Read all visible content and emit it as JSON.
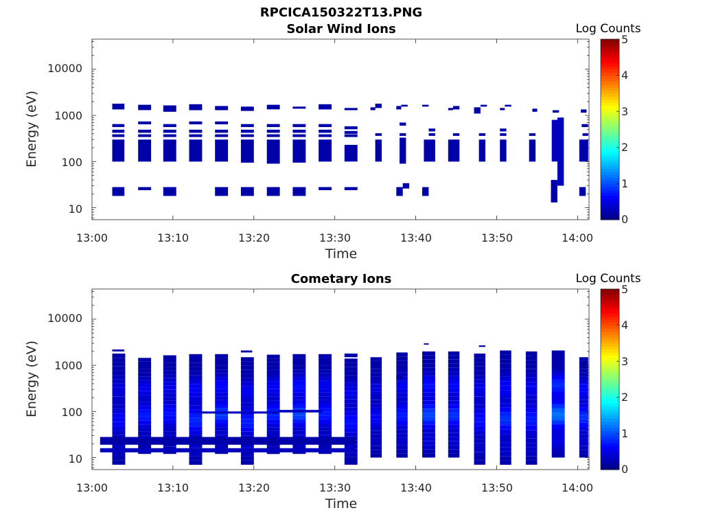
{
  "file_title": "RPCICA150322T13.PNG",
  "chart_data": [
    {
      "type": "heatmap",
      "title": "Solar Wind Ions",
      "xlabel": "Time",
      "ylabel": "Energy (eV)",
      "x_unit": "minutes after 13:00",
      "xlim": [
        0,
        61.5
      ],
      "ylim": [
        5.5,
        45000
      ],
      "y_scale": "log",
      "x_ticks": [
        "13:00",
        "13:10",
        "13:20",
        "13:30",
        "13:40",
        "13:50",
        "14:00"
      ],
      "y_ticks": [
        "10",
        "100",
        "1000",
        "10000"
      ],
      "colorbar": {
        "label": "Log Counts",
        "min": 0,
        "max": 5,
        "ticks": [
          "0",
          "1",
          "2",
          "3",
          "4",
          "5"
        ]
      },
      "cells": [
        [
          2.5,
          4.0,
          1350,
          1800,
          0.2
        ],
        [
          5.7,
          7.3,
          1300,
          1700,
          0.2
        ],
        [
          8.8,
          10.4,
          1200,
          1650,
          0.2
        ],
        [
          12.0,
          13.6,
          1300,
          1750,
          0.2
        ],
        [
          15.2,
          16.8,
          1300,
          1600,
          0.2
        ],
        [
          18.4,
          20.0,
          1250,
          1550,
          0.2
        ],
        [
          21.6,
          23.2,
          1350,
          1700,
          0.2
        ],
        [
          24.8,
          26.4,
          1400,
          1550,
          0.2
        ],
        [
          28.0,
          29.6,
          1350,
          1750,
          0.2
        ],
        [
          31.2,
          32.8,
          1300,
          1450,
          0.2
        ],
        [
          34.4,
          35.0,
          1300,
          1500,
          0.2
        ],
        [
          35.0,
          35.8,
          1450,
          1800,
          0.2
        ],
        [
          37.6,
          38.2,
          1350,
          1600,
          0.2
        ],
        [
          38.2,
          39.0,
          1550,
          1700,
          0.2
        ],
        [
          40.8,
          41.6,
          1550,
          1700,
          0.2
        ],
        [
          44.0,
          44.6,
          1300,
          1450,
          0.2
        ],
        [
          44.6,
          45.4,
          1350,
          1600,
          0.2
        ],
        [
          47.2,
          48.0,
          1100,
          1500,
          0.2
        ],
        [
          48.0,
          48.8,
          1550,
          1700,
          0.2
        ],
        [
          50.4,
          51.0,
          1300,
          1450,
          0.2
        ],
        [
          51.0,
          51.8,
          1550,
          1700,
          0.2
        ],
        [
          54.4,
          55.0,
          1200,
          1400,
          0.2
        ],
        [
          56.9,
          57.7,
          1150,
          1300,
          0.2
        ],
        [
          60.4,
          61.1,
          1150,
          1350,
          0.2
        ],
        [
          2.5,
          4.0,
          560,
          650,
          0.2
        ],
        [
          5.7,
          7.3,
          640,
          740,
          0.2
        ],
        [
          8.8,
          10.4,
          560,
          650,
          0.2
        ],
        [
          12.0,
          13.6,
          640,
          740,
          0.2
        ],
        [
          15.2,
          16.8,
          640,
          740,
          0.2
        ],
        [
          18.4,
          20.0,
          560,
          650,
          0.2
        ],
        [
          21.6,
          23.2,
          560,
          650,
          0.2
        ],
        [
          24.8,
          26.4,
          560,
          650,
          0.2
        ],
        [
          28.0,
          29.6,
          560,
          650,
          0.2
        ],
        [
          31.2,
          32.8,
          500,
          580,
          0.2
        ],
        [
          38.0,
          38.8,
          600,
          700,
          0.2
        ],
        [
          57.0,
          58.0,
          600,
          700,
          0.2
        ],
        [
          60.5,
          61.3,
          560,
          650,
          0.2
        ],
        [
          2.5,
          4.0,
          420,
          490,
          0.2
        ],
        [
          5.7,
          7.3,
          420,
          490,
          0.2
        ],
        [
          8.8,
          10.4,
          420,
          490,
          0.2
        ],
        [
          12.0,
          13.6,
          420,
          490,
          0.2
        ],
        [
          15.2,
          16.8,
          420,
          490,
          0.2
        ],
        [
          18.4,
          20.0,
          420,
          490,
          0.2
        ],
        [
          21.6,
          23.2,
          420,
          490,
          0.2
        ],
        [
          24.8,
          26.4,
          420,
          490,
          0.2
        ],
        [
          28.0,
          29.6,
          420,
          490,
          0.2
        ],
        [
          31.2,
          32.8,
          400,
          460,
          0.2
        ],
        [
          41.6,
          42.4,
          450,
          520,
          0.2
        ],
        [
          50.4,
          51.2,
          450,
          520,
          0.2
        ],
        [
          57.0,
          58.0,
          420,
          490,
          0.2
        ],
        [
          2.5,
          4.0,
          340,
          390,
          0.2
        ],
        [
          5.7,
          7.3,
          340,
          390,
          0.2
        ],
        [
          8.8,
          10.4,
          340,
          390,
          0.2
        ],
        [
          12.0,
          13.6,
          340,
          390,
          0.2
        ],
        [
          15.2,
          16.8,
          340,
          390,
          0.2
        ],
        [
          18.4,
          20.0,
          340,
          390,
          0.2
        ],
        [
          21.6,
          23.2,
          340,
          390,
          0.2
        ],
        [
          24.8,
          26.4,
          340,
          390,
          0.2
        ],
        [
          28.0,
          29.6,
          340,
          390,
          0.2
        ],
        [
          31.2,
          32.8,
          340,
          390,
          0.2
        ],
        [
          35.0,
          35.8,
          360,
          410,
          0.2
        ],
        [
          38.0,
          38.8,
          360,
          410,
          0.2
        ],
        [
          41.6,
          42.4,
          360,
          410,
          0.2
        ],
        [
          44.6,
          45.4,
          360,
          410,
          0.2
        ],
        [
          47.8,
          48.6,
          360,
          410,
          0.2
        ],
        [
          50.4,
          51.2,
          360,
          410,
          0.2
        ],
        [
          54.0,
          54.8,
          360,
          410,
          0.2
        ],
        [
          60.6,
          61.3,
          360,
          410,
          0.2
        ],
        [
          2.5,
          4.0,
          100,
          300,
          0.2
        ],
        [
          5.7,
          7.3,
          100,
          300,
          0.2
        ],
        [
          8.8,
          10.4,
          100,
          300,
          0.2
        ],
        [
          12.0,
          13.6,
          100,
          300,
          0.2
        ],
        [
          15.2,
          16.8,
          100,
          300,
          0.2
        ],
        [
          18.4,
          20.0,
          95,
          300,
          0.2
        ],
        [
          21.6,
          23.2,
          90,
          300,
          0.2
        ],
        [
          24.8,
          26.4,
          95,
          300,
          0.2
        ],
        [
          28.0,
          29.6,
          100,
          300,
          0.2
        ],
        [
          31.2,
          32.8,
          100,
          230,
          0.2
        ],
        [
          35.0,
          35.8,
          100,
          300,
          0.2
        ],
        [
          38.0,
          38.8,
          90,
          330,
          0.2
        ],
        [
          41.0,
          42.4,
          100,
          300,
          0.2
        ],
        [
          44.0,
          45.4,
          100,
          300,
          0.2
        ],
        [
          47.8,
          48.6,
          100,
          300,
          0.2
        ],
        [
          50.4,
          51.2,
          100,
          300,
          0.2
        ],
        [
          54.0,
          54.8,
          100,
          300,
          0.2
        ],
        [
          56.8,
          57.5,
          100,
          800,
          0.3
        ],
        [
          57.5,
          58.3,
          30,
          900,
          0.3
        ],
        [
          60.2,
          61.3,
          100,
          300,
          0.2
        ],
        [
          2.5,
          4.0,
          18,
          28,
          0.2
        ],
        [
          5.7,
          7.3,
          24,
          28,
          0.2
        ],
        [
          8.8,
          10.4,
          18,
          28,
          0.2
        ],
        [
          15.2,
          16.8,
          18,
          28,
          0.2
        ],
        [
          18.4,
          20.0,
          18,
          28,
          0.2
        ],
        [
          21.6,
          23.2,
          18,
          28,
          0.2
        ],
        [
          24.8,
          26.4,
          18,
          28,
          0.2
        ],
        [
          28.0,
          29.6,
          24,
          28,
          0.2
        ],
        [
          31.2,
          32.8,
          24,
          28,
          0.2
        ],
        [
          37.6,
          38.4,
          18,
          28,
          0.2
        ],
        [
          38.4,
          39.2,
          26,
          34,
          0.2
        ],
        [
          40.8,
          41.6,
          18,
          28,
          0.2
        ],
        [
          56.7,
          57.5,
          13,
          40,
          0.2
        ],
        [
          60.2,
          61.0,
          18,
          28,
          0.2
        ]
      ]
    },
    {
      "type": "heatmap",
      "title": "Cometary Ions",
      "xlabel": "Time",
      "ylabel": "Energy (eV)",
      "x_unit": "minutes after 13:00",
      "xlim": [
        0,
        61.5
      ],
      "ylim": [
        5.5,
        45000
      ],
      "y_scale": "log",
      "x_ticks": [
        "13:00",
        "13:10",
        "13:20",
        "13:30",
        "13:40",
        "13:50",
        "14:00"
      ],
      "y_ticks": [
        "10",
        "100",
        "1000",
        "10000"
      ],
      "colorbar": {
        "label": "Log Counts",
        "min": 0,
        "max": 5,
        "ticks": [
          "0",
          "1",
          "2",
          "3",
          "4",
          "5"
        ]
      },
      "columns": [
        {
          "x0": 2.5,
          "x1": 4.1,
          "e_lo": 7,
          "e_hi": 1800,
          "peak": 0.7
        },
        {
          "x0": 5.7,
          "x1": 7.3,
          "e_lo": 12,
          "e_hi": 1450,
          "peak": 1.0
        },
        {
          "x0": 8.8,
          "x1": 10.4,
          "e_lo": 12,
          "e_hi": 1650,
          "peak": 0.9
        },
        {
          "x0": 12.0,
          "x1": 13.6,
          "e_lo": 7,
          "e_hi": 1750,
          "peak": 1.1
        },
        {
          "x0": 15.2,
          "x1": 16.8,
          "e_lo": 12,
          "e_hi": 1750,
          "peak": 1.3
        },
        {
          "x0": 18.4,
          "x1": 20.0,
          "e_lo": 7,
          "e_hi": 1500,
          "peak": 1.0
        },
        {
          "x0": 21.6,
          "x1": 23.2,
          "e_lo": 12,
          "e_hi": 1700,
          "peak": 1.1
        },
        {
          "x0": 24.8,
          "x1": 26.4,
          "e_lo": 12,
          "e_hi": 1750,
          "peak": 1.4
        },
        {
          "x0": 28.0,
          "x1": 29.6,
          "e_lo": 12,
          "e_hi": 1750,
          "peak": 1.0
        },
        {
          "x0": 31.2,
          "x1": 32.8,
          "e_lo": 7,
          "e_hi": 1400,
          "peak": 0.9
        },
        {
          "x0": 34.4,
          "x1": 35.8,
          "e_lo": 10,
          "e_hi": 1500,
          "peak": 0.7
        },
        {
          "x0": 37.6,
          "x1": 39.0,
          "e_lo": 10,
          "e_hi": 1900,
          "peak": 1.0
        },
        {
          "x0": 40.8,
          "x1": 42.4,
          "e_lo": 10,
          "e_hi": 2000,
          "peak": 1.4
        },
        {
          "x0": 44.0,
          "x1": 45.4,
          "e_lo": 10,
          "e_hi": 2000,
          "peak": 1.2
        },
        {
          "x0": 47.2,
          "x1": 48.6,
          "e_lo": 7,
          "e_hi": 1800,
          "peak": 0.9
        },
        {
          "x0": 50.4,
          "x1": 51.8,
          "e_lo": 7,
          "e_hi": 2100,
          "peak": 1.2
        },
        {
          "x0": 53.6,
          "x1": 55.0,
          "e_lo": 7,
          "e_hi": 2000,
          "peak": 1.0
        },
        {
          "x0": 56.8,
          "x1": 58.4,
          "e_lo": 10,
          "e_hi": 2100,
          "peak": 1.8
        },
        {
          "x0": 60.2,
          "x1": 61.3,
          "e_lo": 10,
          "e_hi": 1500,
          "peak": 1.2
        }
      ],
      "cells": [
        [
          1.0,
          32.5,
          19,
          28,
          0.2
        ],
        [
          1.0,
          32.5,
          13,
          16,
          0.3
        ],
        [
          12.8,
          23.0,
          90,
          100,
          0.3
        ],
        [
          23.0,
          28.5,
          95,
          108,
          0.3
        ],
        [
          2.5,
          4.0,
          2000,
          2200,
          0.2
        ],
        [
          18.4,
          19.8,
          1900,
          2100,
          0.2
        ],
        [
          31.2,
          32.8,
          1500,
          1800,
          0.2
        ],
        [
          37.6,
          38.4,
          500,
          600,
          0.2
        ],
        [
          41.0,
          41.6,
          2800,
          3000,
          0.2
        ],
        [
          47.8,
          48.6,
          2500,
          2700,
          0.2
        ],
        [
          54.2,
          55.0,
          1600,
          1800,
          0.2
        ],
        [
          57.6,
          58.4,
          750,
          900,
          0.2
        ]
      ]
    }
  ]
}
